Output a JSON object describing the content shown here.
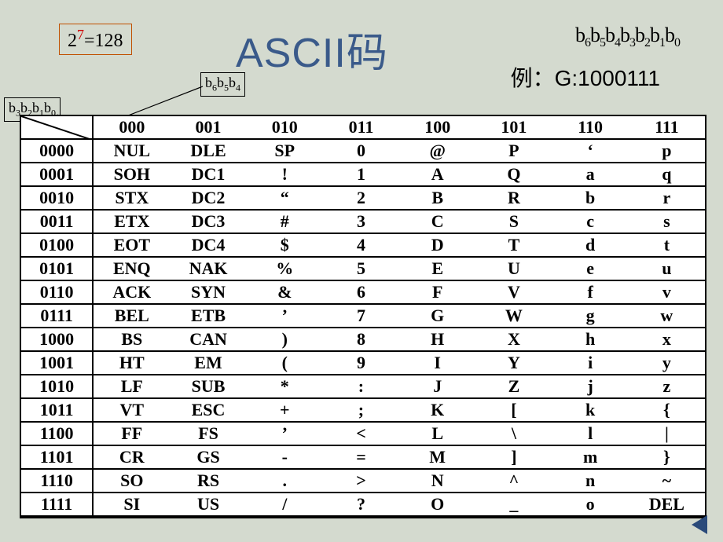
{
  "formula": {
    "base": "2",
    "exp": "7",
    "eq": "=128"
  },
  "title": "ASCII码",
  "bit_label_full": "b₆b₅b₄b₃b₂b₁b₀",
  "example": "例：G:1000111",
  "label_b6": "b₆b₅b₄",
  "label_b3": "b₃b₂b₁b₀",
  "col_headers": [
    "000",
    "001",
    "010",
    "011",
    "100",
    "101",
    "110",
    "111"
  ],
  "row_headers": [
    "0000",
    "0001",
    "0010",
    "0011",
    "0100",
    "0101",
    "0110",
    "0111",
    "1000",
    "1001",
    "1010",
    "1011",
    "1100",
    "1101",
    "1110",
    "1111"
  ],
  "cells": [
    [
      "NUL",
      "DLE",
      "SP",
      "0",
      "@",
      "P",
      "‘",
      "p"
    ],
    [
      "SOH",
      "DC1",
      "!",
      "1",
      "A",
      "Q",
      "a",
      "q"
    ],
    [
      "STX",
      "DC2",
      "“",
      "2",
      "B",
      "R",
      "b",
      "r"
    ],
    [
      "ETX",
      "DC3",
      "#",
      "3",
      "C",
      "S",
      "c",
      "s"
    ],
    [
      "EOT",
      "DC4",
      "$",
      "4",
      "D",
      "T",
      "d",
      "t"
    ],
    [
      "ENQ",
      "NAK",
      "%",
      "5",
      "E",
      "U",
      "e",
      "u"
    ],
    [
      "ACK",
      "SYN",
      "&",
      "6",
      "F",
      "V",
      "f",
      "v"
    ],
    [
      "BEL",
      "ETB",
      "’",
      "7",
      "G",
      "W",
      "g",
      "w"
    ],
    [
      "BS",
      "CAN",
      ")",
      "8",
      "H",
      "X",
      "h",
      "x"
    ],
    [
      "HT",
      "EM",
      "(",
      "9",
      "I",
      "Y",
      "i",
      "y"
    ],
    [
      "LF",
      "SUB",
      "*",
      ":",
      "J",
      "Z",
      "j",
      "z"
    ],
    [
      "VT",
      "ESC",
      "+",
      ";",
      "K",
      "[",
      "k",
      "{"
    ],
    [
      "FF",
      "FS",
      "’",
      "<",
      "L",
      "\\",
      "l",
      "|"
    ],
    [
      "CR",
      "GS",
      "-",
      "=",
      "M",
      "]",
      "m",
      "}"
    ],
    [
      "SO",
      "RS",
      ".",
      ">",
      "N",
      "^",
      "n",
      "~"
    ],
    [
      "SI",
      "US",
      "/",
      "?",
      "O",
      "_",
      "o",
      "DEL"
    ]
  ],
  "style": {
    "bg": "#d4dacf",
    "title_color": "#3a5a8a",
    "border_color": "#000000",
    "formula_border": "#c05000",
    "exp_color": "#d00000",
    "nav_color": "#2a4a7a",
    "table_font_size": 22,
    "title_font_size": 52
  }
}
